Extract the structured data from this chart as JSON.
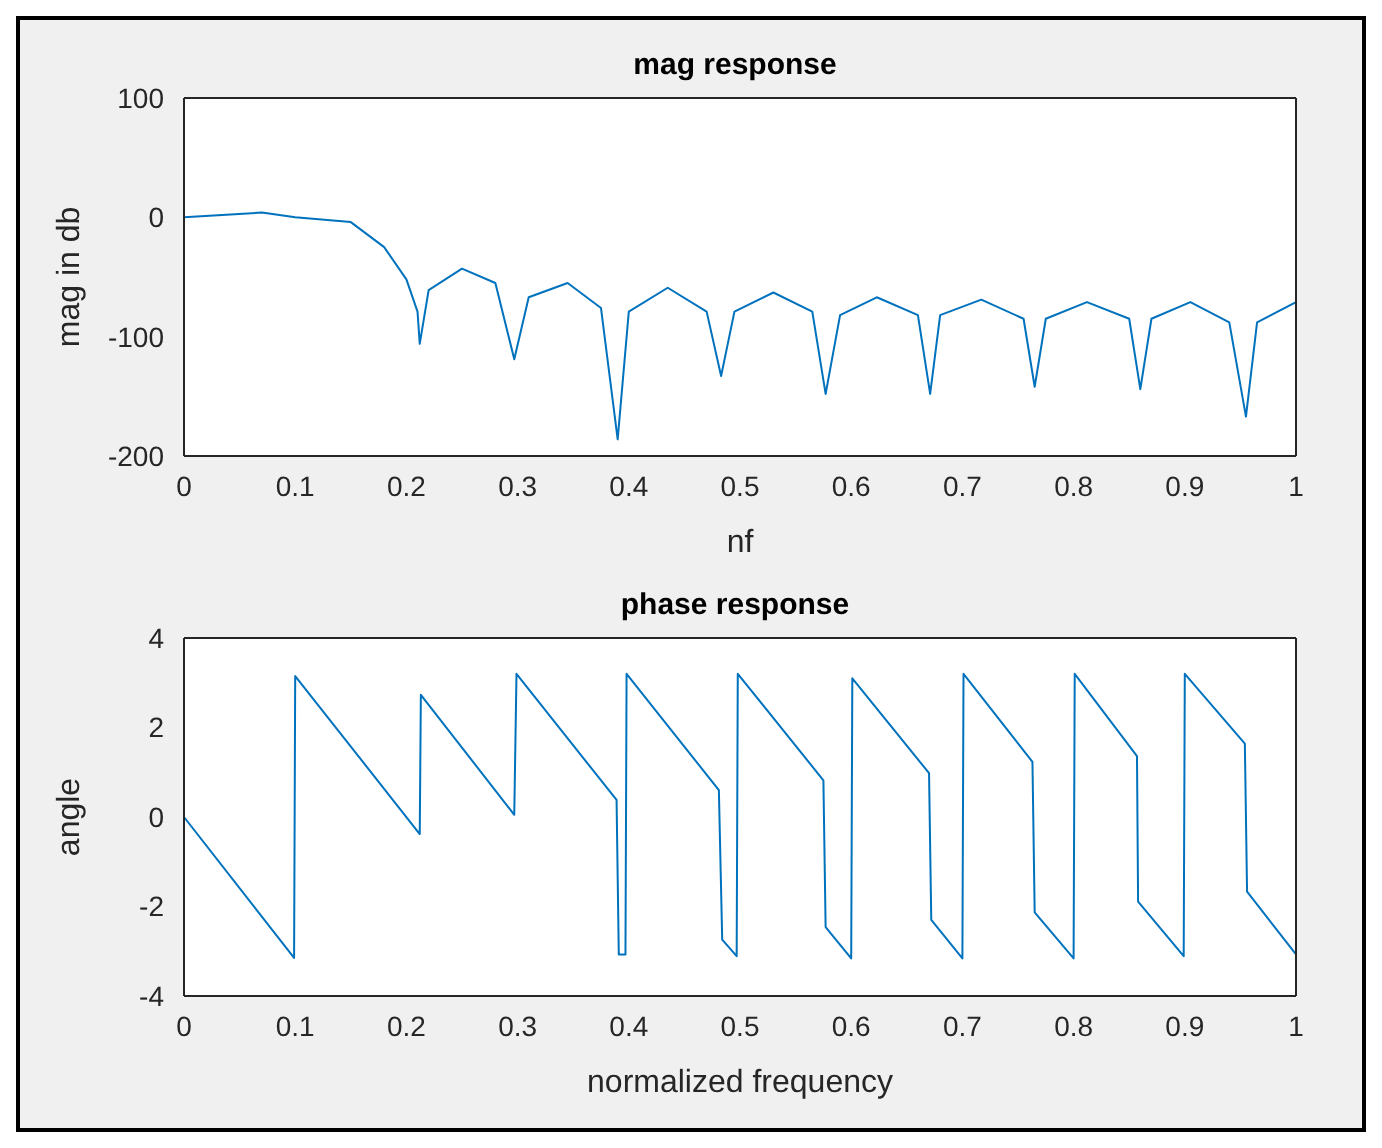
{
  "chart_data": [
    {
      "type": "line",
      "title": "mag response",
      "xlabel": "nf",
      "ylabel": "mag in db",
      "color": "#0072bd",
      "xlim": [
        0,
        1
      ],
      "xticks": [
        0,
        0.1,
        0.2,
        0.3,
        0.4,
        0.5,
        0.6,
        0.7,
        0.8,
        0.9,
        1
      ],
      "ylim": [
        -200,
        100
      ],
      "yticks": [
        -200,
        -100,
        0,
        100
      ],
      "x": [
        0,
        0.07,
        0.1,
        0.15,
        0.18,
        0.2,
        0.21,
        0.212,
        0.22,
        0.25,
        0.28,
        0.297,
        0.31,
        0.345,
        0.375,
        0.39,
        0.4,
        0.435,
        0.47,
        0.483,
        0.495,
        0.53,
        0.565,
        0.577,
        0.59,
        0.623,
        0.66,
        0.671,
        0.68,
        0.717,
        0.755,
        0.765,
        0.775,
        0.812,
        0.85,
        0.86,
        0.87,
        0.905,
        0.94,
        0.955,
        0.965,
        1
      ],
      "values": [
        0,
        4,
        0,
        -4,
        -25,
        -52,
        -79,
        -106,
        -61,
        -43,
        -55,
        -119,
        -67,
        -55,
        -76,
        -186,
        -79,
        -59,
        -79,
        -133,
        -79,
        -63,
        -79,
        -148,
        -82,
        -67,
        -82,
        -148,
        -82,
        -69,
        -85,
        -142,
        -85,
        -71,
        -85,
        -144,
        -85,
        -71,
        -88,
        -167,
        -88,
        -71
      ]
    },
    {
      "type": "line",
      "title": "phase response",
      "xlabel": "normalized frequency",
      "ylabel": "angle",
      "color": "#0072bd",
      "xlim": [
        0,
        1
      ],
      "xticks": [
        0,
        0.1,
        0.2,
        0.3,
        0.4,
        0.5,
        0.6,
        0.7,
        0.8,
        0.9,
        1
      ],
      "ylim": [
        -4,
        4
      ],
      "yticks": [
        -4,
        -2,
        0,
        2,
        4
      ],
      "x": [
        0,
        0.099,
        0.1,
        0.212,
        0.213,
        0.297,
        0.299,
        0.389,
        0.391,
        0.397,
        0.398,
        0.481,
        0.484,
        0.497,
        0.498,
        0.575,
        0.577,
        0.6,
        0.601,
        0.67,
        0.672,
        0.7,
        0.701,
        0.763,
        0.765,
        0.8,
        0.801,
        0.857,
        0.858,
        0.899,
        0.9,
        0.954,
        0.956,
        1
      ],
      "values": [
        0,
        -3.15,
        3.15,
        -0.38,
        2.73,
        0.05,
        3.2,
        0.38,
        -3.07,
        -3.07,
        3.2,
        0.6,
        -2.74,
        -3.11,
        3.2,
        0.82,
        -2.46,
        -3.16,
        3.1,
        0.98,
        -2.3,
        -3.16,
        3.2,
        1.23,
        -2.13,
        -3.16,
        3.2,
        1.36,
        -1.89,
        -3.11,
        3.2,
        1.64,
        -1.67,
        -3.07
      ]
    }
  ]
}
